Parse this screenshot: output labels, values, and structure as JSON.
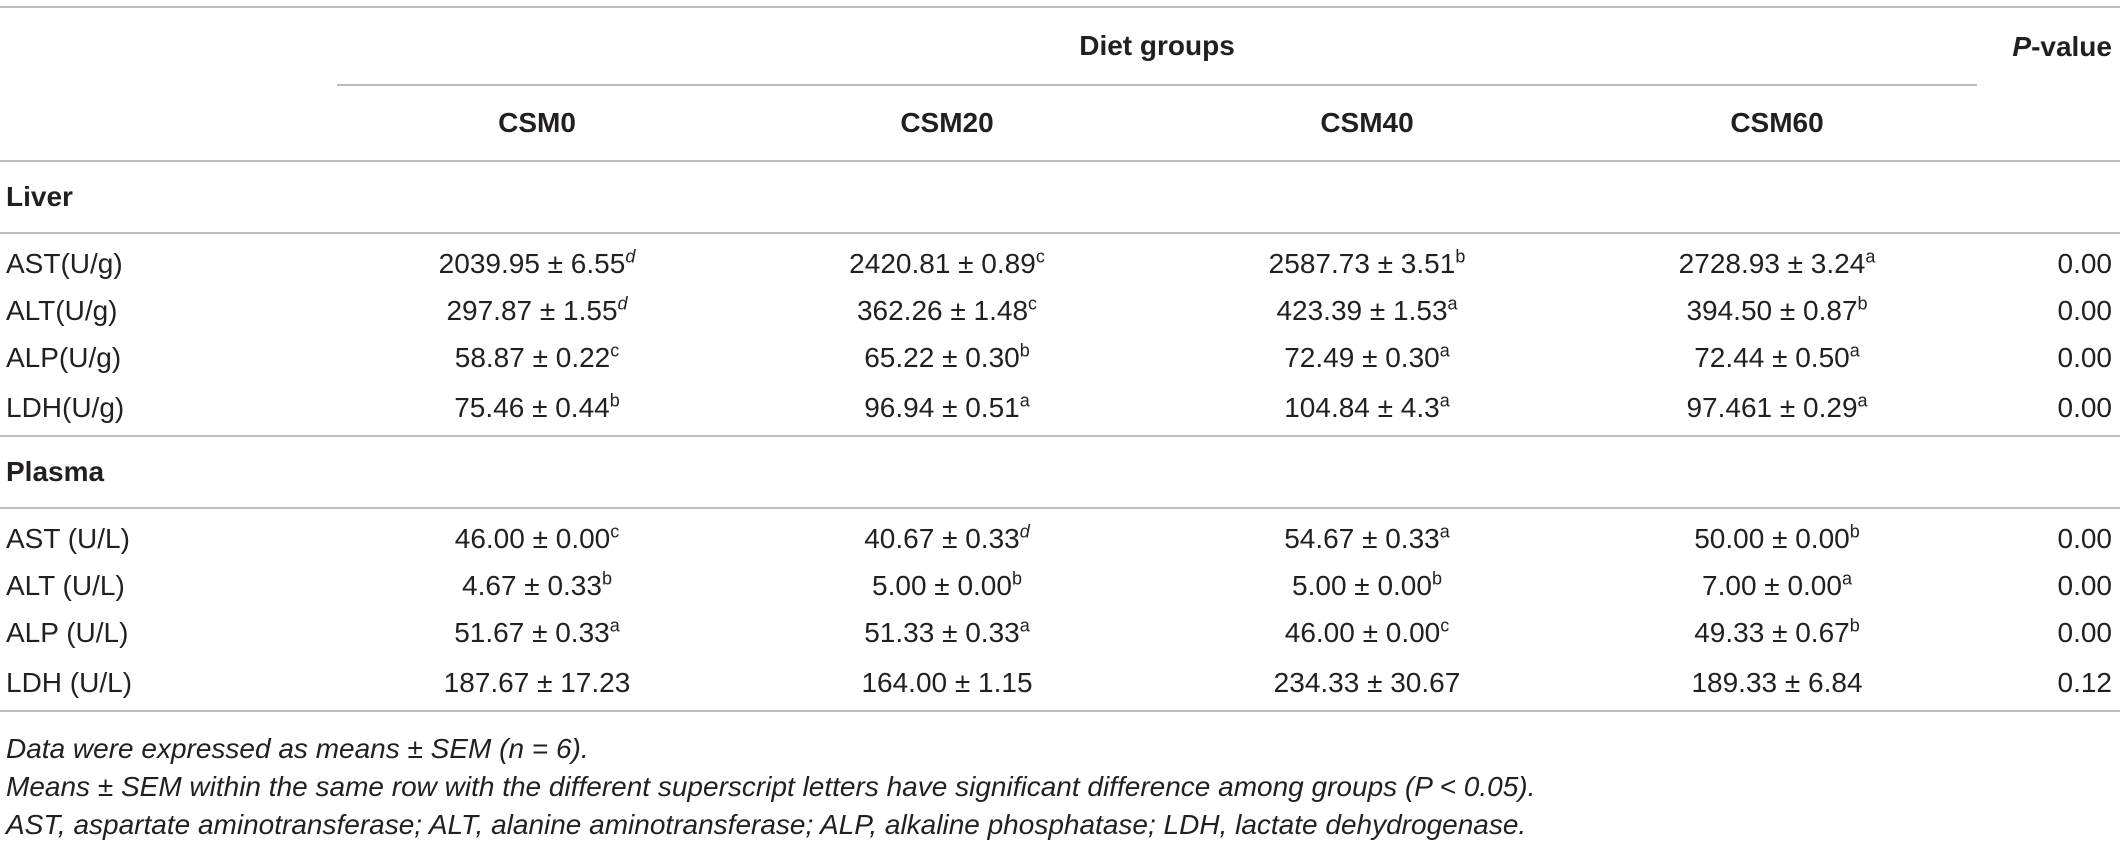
{
  "header": {
    "diet_groups": "Diet groups",
    "p_value": "P-value",
    "groups": [
      "CSM0",
      "CSM20",
      "CSM40",
      "CSM60"
    ]
  },
  "sections": [
    {
      "title": "Liver",
      "rows": [
        {
          "label": "AST(U/g)",
          "cells": [
            {
              "v": "2039.95 ± 6.55",
              "s": "d",
              "it": true
            },
            {
              "v": "2420.81 ± 0.89",
              "s": "c",
              "it": false
            },
            {
              "v": "2587.73 ± 3.51",
              "s": "b",
              "it": false
            },
            {
              "v": "2728.93 ± 3.24",
              "s": "a",
              "it": false
            }
          ],
          "p": "0.00"
        },
        {
          "label": "ALT(U/g)",
          "cells": [
            {
              "v": "297.87 ± 1.55",
              "s": "d",
              "it": true
            },
            {
              "v": "362.26 ± 1.48",
              "s": "c",
              "it": false
            },
            {
              "v": "423.39 ± 1.53",
              "s": "a",
              "it": false
            },
            {
              "v": "394.50 ± 0.87",
              "s": "b",
              "it": false
            }
          ],
          "p": "0.00"
        },
        {
          "label": "ALP(U/g)",
          "cells": [
            {
              "v": "58.87 ± 0.22",
              "s": "c",
              "it": false
            },
            {
              "v": "65.22 ± 0.30",
              "s": "b",
              "it": false
            },
            {
              "v": "72.49 ± 0.30",
              "s": "a",
              "it": false
            },
            {
              "v": "72.44 ± 0.50",
              "s": "a",
              "it": false
            }
          ],
          "p": "0.00"
        },
        {
          "label": "LDH(U/g)",
          "cells": [
            {
              "v": "75.46 ± 0.44",
              "s": "b",
              "it": false
            },
            {
              "v": "96.94 ± 0.51",
              "s": "a",
              "it": false
            },
            {
              "v": "104.84 ± 4.3",
              "s": "a",
              "it": false
            },
            {
              "v": "97.461 ± 0.29",
              "s": "a",
              "it": false
            }
          ],
          "p": "0.00"
        }
      ]
    },
    {
      "title": "Plasma",
      "rows": [
        {
          "label": "AST (U/L)",
          "cells": [
            {
              "v": "46.00 ± 0.00",
              "s": "c",
              "it": false
            },
            {
              "v": "40.67 ± 0.33",
              "s": "d",
              "it": true
            },
            {
              "v": "54.67 ± 0.33",
              "s": "a",
              "it": false
            },
            {
              "v": "50.00 ± 0.00",
              "s": "b",
              "it": false
            }
          ],
          "p": "0.00"
        },
        {
          "label": "ALT (U/L)",
          "cells": [
            {
              "v": "4.67 ± 0.33",
              "s": "b",
              "it": false
            },
            {
              "v": "5.00 ± 0.00",
              "s": "b",
              "it": false
            },
            {
              "v": "5.00 ± 0.00",
              "s": "b",
              "it": false
            },
            {
              "v": "7.00 ± 0.00",
              "s": "a",
              "it": false
            }
          ],
          "p": "0.00"
        },
        {
          "label": "ALP (U/L)",
          "cells": [
            {
              "v": "51.67 ± 0.33",
              "s": "a",
              "it": false
            },
            {
              "v": "51.33 ± 0.33",
              "s": "a",
              "it": false
            },
            {
              "v": "46.00 ± 0.00",
              "s": "c",
              "it": false
            },
            {
              "v": "49.33 ± 0.67",
              "s": "b",
              "it": false
            }
          ],
          "p": "0.00"
        },
        {
          "label": "LDH (U/L)",
          "cells": [
            {
              "v": "187.67 ± 17.23",
              "s": "",
              "it": false
            },
            {
              "v": "164.00 ± 1.15",
              "s": "",
              "it": false
            },
            {
              "v": "234.33 ± 30.67",
              "s": "",
              "it": false
            },
            {
              "v": "189.33 ± 6.84",
              "s": "",
              "it": false
            }
          ],
          "p": "0.12"
        }
      ]
    }
  ],
  "notes": [
    "Data were expressed as means ± SEM (n = 6).",
    "Means ± SEM within the same row with the different superscript letters have significant difference among groups (P < 0.05).",
    "AST, aspartate aminotransferase; ALT, alanine aminotransferase; ALP, alkaline phosphatase; LDH, lactate dehydrogenase."
  ]
}
